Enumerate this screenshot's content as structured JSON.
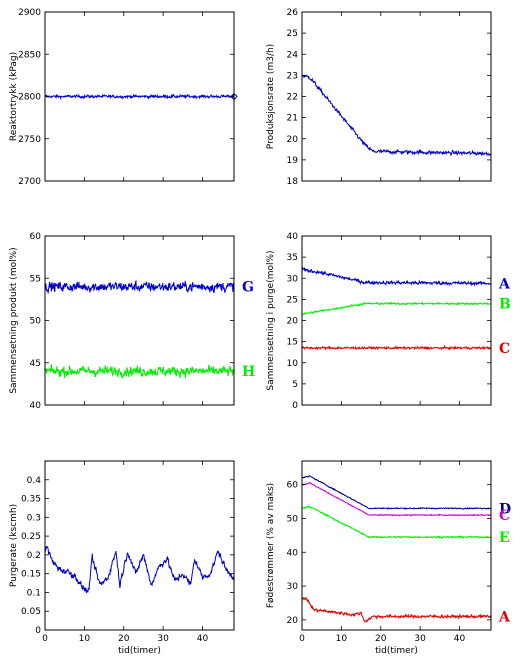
{
  "chart_data": [
    {
      "type": "line",
      "ylabel": "Reaktortrykk (kPag)",
      "xlabel": "",
      "xlim": [
        0,
        48
      ],
      "ylim": [
        2700,
        2900
      ],
      "yticks": [
        2700,
        2750,
        2800,
        2850,
        2900
      ],
      "xticks": [
        0,
        10,
        20,
        30,
        40
      ],
      "show_xticklabels": false,
      "series": [
        {
          "color": "#0000cc",
          "base": [
            [
              0,
              2800
            ],
            [
              48,
              2800
            ]
          ],
          "noise": 1.5,
          "end_marker": "diamond"
        }
      ]
    },
    {
      "type": "line",
      "ylabel": "Produksjonsrate (m3/h)",
      "xlabel": "",
      "xlim": [
        0,
        48
      ],
      "ylim": [
        18,
        26
      ],
      "yticks": [
        18,
        19,
        20,
        21,
        22,
        23,
        24,
        25,
        26
      ],
      "xticks": [
        0,
        10,
        20,
        30,
        40
      ],
      "show_xticklabels": false,
      "series": [
        {
          "color": "#0000cc",
          "base": [
            [
              0,
              23.0
            ],
            [
              2,
              22.9
            ],
            [
              16,
              19.7
            ],
            [
              18,
              19.4
            ],
            [
              48,
              19.3
            ]
          ],
          "noise": 0.08
        }
      ]
    },
    {
      "type": "line",
      "ylabel": "Sammensetning produkt (mol%)",
      "xlabel": "",
      "xlim": [
        0,
        48
      ],
      "ylim": [
        40,
        60
      ],
      "yticks": [
        40,
        45,
        50,
        55,
        60
      ],
      "xticks": [
        0,
        10,
        20,
        30,
        40
      ],
      "show_xticklabels": false,
      "series": [
        {
          "name": "G",
          "color": "#0000cc",
          "base": [
            [
              0,
              54
            ],
            [
              48,
              54
            ]
          ],
          "noise": 0.55
        },
        {
          "name": "H",
          "color": "#00ee00",
          "base": [
            [
              0,
              44
            ],
            [
              48,
              44
            ]
          ],
          "noise": 0.55
        }
      ]
    },
    {
      "type": "line",
      "ylabel": "Sammensetning i purge(mol%)",
      "xlabel": "",
      "xlim": [
        0,
        48
      ],
      "ylim": [
        0,
        40
      ],
      "yticks": [
        0,
        5,
        10,
        15,
        20,
        25,
        30,
        35,
        40
      ],
      "xticks": [
        0,
        10,
        20,
        30,
        40
      ],
      "show_xticklabels": false,
      "series": [
        {
          "name": "A",
          "color": "#0000cc",
          "base": [
            [
              0,
              32
            ],
            [
              4,
              31.5
            ],
            [
              16,
              29
            ],
            [
              48,
              28.8
            ]
          ],
          "noise": 0.35
        },
        {
          "name": "B",
          "color": "#00ee00",
          "base": [
            [
              0,
              21.5
            ],
            [
              16,
              24
            ],
            [
              48,
              24
            ]
          ],
          "noise": 0.2
        },
        {
          "name": "C",
          "color": "#dd0000",
          "base": [
            [
              0,
              13.5
            ],
            [
              48,
              13.5
            ]
          ],
          "noise": 0.25
        }
      ]
    },
    {
      "type": "line",
      "ylabel": "Purgerate (kscmh)",
      "xlabel": "tid(timer)",
      "xlim": [
        0,
        48
      ],
      "ylim": [
        0,
        0.45
      ],
      "yticks": [
        0,
        0.05,
        0.1,
        0.15,
        0.2,
        0.25,
        0.3,
        0.35,
        0.4
      ],
      "xticks": [
        0,
        10,
        20,
        30,
        40
      ],
      "show_xticklabels": true,
      "series": [
        {
          "color": "#0000cc",
          "base": [
            [
              0,
              0.21
            ],
            [
              0.5,
              0.22
            ],
            [
              2,
              0.18
            ],
            [
              4,
              0.16
            ],
            [
              6,
              0.155
            ],
            [
              8,
              0.14
            ],
            [
              9,
              0.12
            ],
            [
              11,
              0.1
            ],
            [
              12,
              0.19
            ],
            [
              14,
              0.12
            ],
            [
              16,
              0.14
            ],
            [
              18,
              0.21
            ],
            [
              19,
              0.12
            ],
            [
              21,
              0.21
            ],
            [
              23,
              0.15
            ],
            [
              25,
              0.2
            ],
            [
              27,
              0.12
            ],
            [
              29,
              0.17
            ],
            [
              31,
              0.19
            ],
            [
              33,
              0.13
            ],
            [
              35,
              0.15
            ],
            [
              37,
              0.12
            ],
            [
              38,
              0.19
            ],
            [
              40,
              0.14
            ],
            [
              42,
              0.15
            ],
            [
              44,
              0.21
            ],
            [
              46,
              0.16
            ],
            [
              48,
              0.14
            ]
          ],
          "noise": 0.008
        }
      ]
    },
    {
      "type": "line",
      "ylabel": "Fødestrømmer (% av maks)",
      "xlabel": "tid(timer)",
      "xlim": [
        0,
        48
      ],
      "ylim": [
        17,
        67
      ],
      "yticks": [
        20,
        30,
        40,
        50,
        60
      ],
      "xticks": [
        0,
        10,
        20,
        30,
        40
      ],
      "show_xticklabels": true,
      "series": [
        {
          "name": "D",
          "color": "#00008b",
          "base": [
            [
              0,
              62
            ],
            [
              2,
              62.5
            ],
            [
              17,
              53
            ],
            [
              48,
              53
            ]
          ],
          "noise": 0.15
        },
        {
          "name": "C",
          "color": "#cc00cc",
          "base": [
            [
              0,
              60
            ],
            [
              2,
              60.5
            ],
            [
              17,
              51
            ],
            [
              48,
              51
            ]
          ],
          "noise": 0.15
        },
        {
          "name": "E",
          "color": "#00ee00",
          "base": [
            [
              0,
              53
            ],
            [
              2,
              53.5
            ],
            [
              17,
              44.5
            ],
            [
              48,
              44.5
            ]
          ],
          "noise": 0.2
        },
        {
          "name": "A",
          "color": "#dd0000",
          "base": [
            [
              0,
              26
            ],
            [
              1,
              26.5
            ],
            [
              3,
              23
            ],
            [
              10,
              22
            ],
            [
              13,
              21.5
            ],
            [
              15,
              22
            ],
            [
              16,
              19.5
            ],
            [
              18,
              21
            ],
            [
              24,
              21
            ],
            [
              48,
              21
            ]
          ],
          "noise": 0.4
        }
      ]
    }
  ]
}
